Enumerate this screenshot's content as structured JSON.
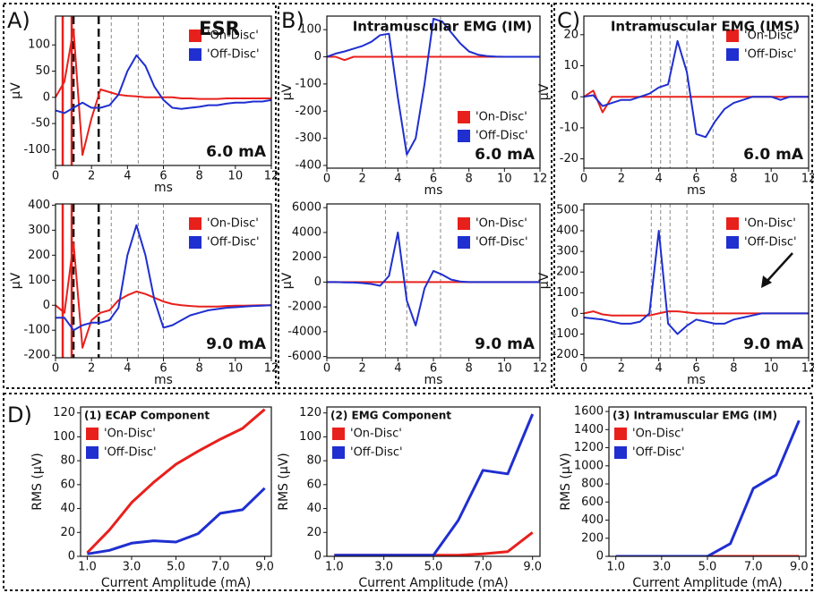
{
  "chart_data": [
    {
      "type": "line",
      "panel_label": "A)",
      "title": "ESR",
      "annotation": "6.0 mA",
      "xlabel": "ms",
      "ylabel": "µV",
      "legend": "upper right",
      "x": [
        0,
        0.5,
        1,
        1.5,
        2,
        2.5,
        3,
        3.5,
        4,
        4.5,
        5,
        5.5,
        6,
        6.5,
        7,
        7.5,
        8,
        8.5,
        9,
        9.5,
        10,
        10.5,
        11,
        11.5,
        12
      ],
      "series": [
        {
          "name": "'On-Disc'",
          "color": "#e8201c",
          "values": [
            0,
            30,
            130,
            -110,
            -40,
            15,
            10,
            5,
            3,
            2,
            0,
            0,
            0,
            0,
            -2,
            -2,
            -3,
            -3,
            -3,
            -2,
            -2,
            -2,
            -2,
            -2,
            -2
          ]
        },
        {
          "name": "'Off-Disc'",
          "color": "#1f2fd0",
          "values": [
            -25,
            -30,
            -20,
            -10,
            -20,
            -20,
            -15,
            5,
            50,
            80,
            60,
            20,
            -5,
            -20,
            -22,
            -20,
            -18,
            -15,
            -15,
            -12,
            -10,
            -10,
            -8,
            -8,
            -5
          ]
        }
      ],
      "xlim": [
        0,
        12
      ],
      "xticks": [
        0,
        2,
        4,
        6,
        8,
        10,
        12
      ],
      "ylim": [
        -130,
        155
      ],
      "yticks": [
        -100,
        -50,
        0,
        50,
        100
      ],
      "stim_lines": [
        0.4,
        0.9
      ],
      "event_lines": [
        1.0,
        2.4
      ],
      "vlines": [
        3.1,
        4.6,
        6.0
      ]
    },
    {
      "type": "line",
      "annotation": "9.0 mA",
      "xlabel": "ms",
      "ylabel": "µV",
      "legend": "upper right",
      "x": [
        0,
        0.5,
        1,
        1.5,
        2,
        2.5,
        3,
        3.5,
        4,
        4.5,
        5,
        5.5,
        6,
        6.5,
        7,
        7.5,
        8,
        8.5,
        9,
        9.5,
        10,
        10.5,
        11,
        11.5,
        12
      ],
      "series": [
        {
          "name": "'On-Disc'",
          "color": "#e8201c",
          "values": [
            0,
            -30,
            250,
            -170,
            -60,
            -30,
            -20,
            20,
            40,
            55,
            45,
            30,
            15,
            5,
            0,
            -3,
            -5,
            -5,
            -5,
            -3,
            -2,
            -2,
            -1,
            0,
            0
          ]
        },
        {
          "name": "'Off-Disc'",
          "color": "#1f2fd0",
          "values": [
            -50,
            -50,
            -100,
            -80,
            -70,
            -70,
            -60,
            -10,
            200,
            320,
            200,
            20,
            -90,
            -80,
            -60,
            -40,
            -30,
            -20,
            -15,
            -10,
            -8,
            -5,
            -3,
            -2,
            0
          ]
        }
      ],
      "xlim": [
        0,
        12
      ],
      "xticks": [
        0,
        2,
        4,
        6,
        8,
        10,
        12
      ],
      "ylim": [
        -210,
        405
      ],
      "yticks": [
        -200,
        -100,
        0,
        100,
        200,
        300,
        400
      ],
      "stim_lines": [
        0.4,
        0.9
      ],
      "event_lines": [
        1.0,
        2.4
      ],
      "vlines": [
        3.1,
        4.6,
        6.0
      ]
    },
    {
      "type": "line",
      "panel_label": "B)",
      "title": "Intramuscular EMG (IM)",
      "annotation": "6.0 mA",
      "xlabel": "ms",
      "ylabel": "µV",
      "legend": "center right",
      "x": [
        0,
        0.5,
        1,
        1.5,
        2,
        2.5,
        3,
        3.5,
        4,
        4.5,
        5,
        5.5,
        6,
        6.5,
        7,
        7.5,
        8,
        8.5,
        9,
        9.5,
        10,
        10.5,
        11,
        11.5,
        12
      ],
      "series": [
        {
          "name": "'On-Disc'",
          "color": "#e8201c",
          "values": [
            0,
            0,
            -12,
            0,
            0,
            0,
            0,
            0,
            0,
            0,
            0,
            0,
            0,
            0,
            0,
            0,
            0,
            0,
            0,
            0,
            0,
            0,
            0,
            0,
            0
          ]
        },
        {
          "name": "'Off-Disc'",
          "color": "#1f2fd0",
          "values": [
            0,
            12,
            20,
            30,
            40,
            55,
            80,
            85,
            -150,
            -360,
            -300,
            -100,
            140,
            130,
            90,
            50,
            20,
            8,
            3,
            1,
            0,
            0,
            0,
            0,
            0
          ]
        }
      ],
      "xlim": [
        0,
        12
      ],
      "xticks": [
        0,
        2,
        4,
        6,
        8,
        10,
        12
      ],
      "ylim": [
        -410,
        150
      ],
      "yticks": [
        -400,
        -300,
        -200,
        -100,
        0,
        100
      ],
      "vlines": [
        3.3,
        4.5,
        6.4
      ]
    },
    {
      "type": "line",
      "annotation": "9.0 mA",
      "xlabel": "ms",
      "ylabel": "µV",
      "legend": "upper right",
      "x": [
        0,
        0.5,
        1,
        1.5,
        2,
        2.5,
        3,
        3.5,
        4,
        4.5,
        5,
        5.5,
        6,
        6.5,
        7,
        7.5,
        8,
        8.5,
        9,
        9.5,
        10,
        10.5,
        11,
        11.5,
        12
      ],
      "series": [
        {
          "name": "'On-Disc'",
          "color": "#e8201c",
          "values": [
            0,
            0,
            0,
            0,
            0,
            0,
            0,
            0,
            0,
            0,
            0,
            0,
            0,
            0,
            0,
            0,
            0,
            0,
            0,
            0,
            0,
            0,
            0,
            0,
            0
          ]
        },
        {
          "name": "'Off-Disc'",
          "color": "#1f2fd0",
          "values": [
            0,
            0,
            -20,
            -40,
            -80,
            -150,
            -300,
            500,
            4000,
            -1500,
            -3500,
            -500,
            900,
            600,
            200,
            50,
            0,
            0,
            0,
            0,
            0,
            0,
            0,
            0,
            0
          ]
        }
      ],
      "xlim": [
        0,
        12
      ],
      "xticks": [
        0,
        2,
        4,
        6,
        8,
        10,
        12
      ],
      "ylim": [
        -6100,
        6300
      ],
      "yticks": [
        -6000,
        -4000,
        -2000,
        0,
        2000,
        4000,
        6000
      ],
      "vlines": [
        3.3,
        4.5,
        6.4
      ]
    },
    {
      "type": "line",
      "panel_label": "C)",
      "title": "Intramuscular EMG (IMS)",
      "annotation": "6.0 mA",
      "xlabel": "ms",
      "ylabel": "µV",
      "legend": "upper right",
      "x": [
        0,
        0.5,
        1,
        1.5,
        2,
        2.5,
        3,
        3.5,
        4,
        4.5,
        5,
        5.5,
        6,
        6.5,
        7,
        7.5,
        8,
        8.5,
        9,
        9.5,
        10,
        10.5,
        11,
        11.5,
        12
      ],
      "series": [
        {
          "name": "'On-Disc'",
          "color": "#e8201c",
          "values": [
            0,
            2,
            -5,
            0,
            0,
            0,
            0,
            0,
            0,
            0,
            0,
            0,
            0,
            0,
            0,
            0,
            0,
            0,
            0,
            0,
            0,
            0,
            0,
            0,
            0
          ]
        },
        {
          "name": "'Off-Disc'",
          "color": "#1f2fd0",
          "values": [
            0,
            0.5,
            -3,
            -2,
            -1,
            -1,
            0,
            1,
            3,
            4,
            18,
            8,
            -12,
            -13,
            -8,
            -4,
            -2,
            -1,
            0,
            0,
            0,
            -1,
            0,
            0,
            0
          ]
        }
      ],
      "xlim": [
        0,
        12
      ],
      "xticks": [
        0,
        2,
        4,
        6,
        8,
        10,
        12
      ],
      "ylim": [
        -23,
        26
      ],
      "yticks": [
        -20,
        -10,
        0,
        10,
        20
      ],
      "vlines": [
        3.6,
        4.1,
        4.6,
        5.5,
        6.9
      ]
    },
    {
      "type": "line",
      "annotation": "9.0 mA",
      "xlabel": "ms",
      "ylabel": "µV",
      "legend": "upper right",
      "x": [
        0,
        0.5,
        1,
        1.5,
        2,
        2.5,
        3,
        3.5,
        4,
        4.5,
        5,
        5.5,
        6,
        6.5,
        7,
        7.5,
        8,
        8.5,
        9,
        9.5,
        10,
        10.5,
        11,
        11.5,
        12
      ],
      "series": [
        {
          "name": "'On-Disc'",
          "color": "#e8201c",
          "values": [
            0,
            10,
            -5,
            -10,
            -10,
            -10,
            -10,
            -10,
            0,
            10,
            10,
            5,
            0,
            0,
            0,
            0,
            0,
            0,
            0,
            0,
            0,
            0,
            0,
            0,
            0
          ]
        },
        {
          "name": "'Off-Disc'",
          "color": "#1f2fd0",
          "values": [
            -20,
            -25,
            -30,
            -40,
            -50,
            -50,
            -40,
            0,
            400,
            -50,
            -100,
            -60,
            -30,
            -40,
            -50,
            -50,
            -30,
            -20,
            -10,
            0,
            0,
            0,
            0,
            0,
            0
          ]
        }
      ],
      "xlim": [
        0,
        12
      ],
      "xticks": [
        0,
        2,
        4,
        6,
        8,
        10,
        12
      ],
      "ylim": [
        -215,
        530
      ],
      "yticks": [
        -200,
        -100,
        0,
        100,
        200,
        300,
        400,
        500
      ],
      "vlines": [
        3.6,
        4.1,
        4.6,
        5.5,
        6.9
      ]
    },
    {
      "type": "line",
      "panel_label": "D)",
      "title": "(1) ECAP Component",
      "xlabel": "Current Amplitude (mA)",
      "ylabel": "RMS (µV)",
      "legend": "upper left",
      "x": [
        1,
        2,
        3,
        4,
        5,
        6,
        7,
        8,
        9
      ],
      "series": [
        {
          "name": "'On-Disc'",
          "color": "#e8201c",
          "values": [
            3,
            22,
            45,
            62,
            77,
            88,
            98,
            107,
            123
          ]
        },
        {
          "name": "'Off-Disc'",
          "color": "#1f2fd0",
          "values": [
            2,
            5,
            11,
            13,
            12,
            19,
            36,
            39,
            57
          ]
        }
      ],
      "xlim": [
        0.7,
        9.3
      ],
      "xticks": [
        {
          "value": 1,
          "label": "1.0"
        },
        {
          "value": 3,
          "label": "3.0"
        },
        {
          "value": 5,
          "label": "5.0"
        },
        {
          "value": 7,
          "label": "7.0"
        },
        {
          "value": 9,
          "label": "9.0"
        }
      ],
      "ylim": [
        0,
        125
      ],
      "yticks": [
        0,
        20,
        40,
        60,
        80,
        100,
        120
      ]
    },
    {
      "type": "line",
      "title": "(2) EMG Component",
      "xlabel": "Current Amplitude (mA)",
      "ylabel": "RMS (µV)",
      "legend": "upper left",
      "x": [
        1,
        2,
        3,
        4,
        5,
        6,
        7,
        8,
        9
      ],
      "series": [
        {
          "name": "'On-Disc'",
          "color": "#e8201c",
          "values": [
            1,
            1,
            1,
            1,
            1,
            1,
            2,
            4,
            20
          ]
        },
        {
          "name": "'Off-Disc'",
          "color": "#1f2fd0",
          "values": [
            1,
            1,
            1,
            1,
            1,
            30,
            72,
            69,
            119
          ]
        }
      ],
      "xlim": [
        0.7,
        9.3
      ],
      "xticks": [
        {
          "value": 1,
          "label": "1.0"
        },
        {
          "value": 3,
          "label": "3.0"
        },
        {
          "value": 5,
          "label": "5.0"
        },
        {
          "value": 7,
          "label": "7.0"
        },
        {
          "value": 9,
          "label": "9.0"
        }
      ],
      "ylim": [
        0,
        125
      ],
      "yticks": [
        0,
        20,
        40,
        60,
        80,
        100,
        120
      ]
    },
    {
      "type": "line",
      "title": "(3) Intramuscular EMG (IM)",
      "xlabel": "Current Amplitude (mA)",
      "ylabel": "RMS (µV)",
      "legend": "upper left",
      "x": [
        1,
        2,
        3,
        4,
        5,
        6,
        7,
        8,
        9
      ],
      "series": [
        {
          "name": "'On-Disc'",
          "color": "#e8201c",
          "values": [
            0,
            0,
            0,
            0,
            0,
            0,
            0,
            0,
            0
          ]
        },
        {
          "name": "'Off-Disc'",
          "color": "#1f2fd0",
          "values": [
            0,
            0,
            0,
            0,
            0,
            140,
            750,
            900,
            1500
          ]
        }
      ],
      "xlim": [
        0.7,
        9.3
      ],
      "xticks": [
        {
          "value": 1,
          "label": "1.0"
        },
        {
          "value": 3,
          "label": "3.0"
        },
        {
          "value": 5,
          "label": "5.0"
        },
        {
          "value": 7,
          "label": "7.0"
        },
        {
          "value": 9,
          "label": "9.0"
        }
      ],
      "ylim": [
        0,
        1650
      ],
      "yticks": [
        0,
        200,
        400,
        600,
        800,
        1000,
        1200,
        1400,
        1600
      ]
    }
  ]
}
